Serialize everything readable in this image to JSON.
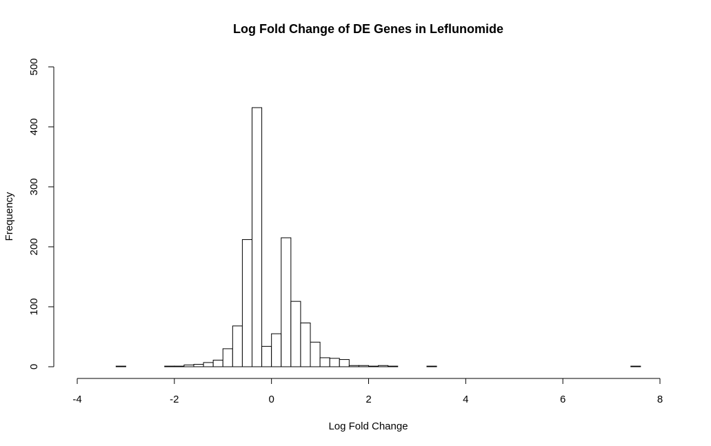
{
  "chart_data": {
    "type": "bar",
    "title": "Log Fold Change of DE Genes in Leflunomide",
    "xlabel": "Log Fold Change",
    "ylabel": "Frequency",
    "xlim": [
      -4,
      8
    ],
    "ylim": [
      0,
      500
    ],
    "xticks": [
      "-4",
      "-2",
      "0",
      "2",
      "4",
      "6",
      "8"
    ],
    "yticks": [
      "0",
      "100",
      "200",
      "300",
      "400",
      "500"
    ],
    "bin_width": 0.2,
    "bins": [
      {
        "start": -3.2,
        "end": -3.0,
        "count": 1
      },
      {
        "start": -3.0,
        "end": -2.8,
        "count": 0
      },
      {
        "start": -2.8,
        "end": -2.6,
        "count": 0
      },
      {
        "start": -2.6,
        "end": -2.4,
        "count": 0
      },
      {
        "start": -2.4,
        "end": -2.2,
        "count": 0
      },
      {
        "start": -2.2,
        "end": -2.0,
        "count": 1
      },
      {
        "start": -2.0,
        "end": -1.8,
        "count": 1
      },
      {
        "start": -1.8,
        "end": -1.6,
        "count": 3
      },
      {
        "start": -1.6,
        "end": -1.4,
        "count": 4
      },
      {
        "start": -1.4,
        "end": -1.2,
        "count": 7
      },
      {
        "start": -1.2,
        "end": -1.0,
        "count": 11
      },
      {
        "start": -1.0,
        "end": -0.8,
        "count": 30
      },
      {
        "start": -0.8,
        "end": -0.6,
        "count": 68
      },
      {
        "start": -0.6,
        "end": -0.4,
        "count": 212
      },
      {
        "start": -0.4,
        "end": -0.2,
        "count": 432
      },
      {
        "start": -0.2,
        "end": 0.0,
        "count": 34
      },
      {
        "start": 0.0,
        "end": 0.2,
        "count": 55
      },
      {
        "start": 0.2,
        "end": 0.4,
        "count": 215
      },
      {
        "start": 0.4,
        "end": 0.6,
        "count": 109
      },
      {
        "start": 0.6,
        "end": 0.8,
        "count": 73
      },
      {
        "start": 0.8,
        "end": 1.0,
        "count": 41
      },
      {
        "start": 1.0,
        "end": 1.2,
        "count": 15
      },
      {
        "start": 1.2,
        "end": 1.4,
        "count": 14
      },
      {
        "start": 1.4,
        "end": 1.6,
        "count": 12
      },
      {
        "start": 1.6,
        "end": 1.8,
        "count": 2
      },
      {
        "start": 1.8,
        "end": 2.0,
        "count": 2
      },
      {
        "start": 2.0,
        "end": 2.2,
        "count": 1
      },
      {
        "start": 2.2,
        "end": 2.4,
        "count": 2
      },
      {
        "start": 2.4,
        "end": 2.6,
        "count": 1
      },
      {
        "start": 2.6,
        "end": 2.8,
        "count": 0
      },
      {
        "start": 2.8,
        "end": 3.0,
        "count": 0
      },
      {
        "start": 3.0,
        "end": 3.2,
        "count": 0
      },
      {
        "start": 3.2,
        "end": 3.4,
        "count": 1
      },
      {
        "start": 3.4,
        "end": 3.6,
        "count": 0
      },
      {
        "start": 3.6,
        "end": 3.8,
        "count": 0
      },
      {
        "start": 3.8,
        "end": 4.0,
        "count": 0
      },
      {
        "start": 4.0,
        "end": 4.2,
        "count": 0
      },
      {
        "start": 4.2,
        "end": 4.4,
        "count": 0
      },
      {
        "start": 4.4,
        "end": 4.6,
        "count": 0
      },
      {
        "start": 4.6,
        "end": 4.8,
        "count": 0
      },
      {
        "start": 4.8,
        "end": 5.0,
        "count": 0
      },
      {
        "start": 5.0,
        "end": 5.2,
        "count": 0
      },
      {
        "start": 5.2,
        "end": 5.4,
        "count": 0
      },
      {
        "start": 5.4,
        "end": 5.6,
        "count": 0
      },
      {
        "start": 5.6,
        "end": 5.8,
        "count": 0
      },
      {
        "start": 5.8,
        "end": 6.0,
        "count": 0
      },
      {
        "start": 6.0,
        "end": 6.2,
        "count": 0
      },
      {
        "start": 6.2,
        "end": 6.4,
        "count": 0
      },
      {
        "start": 6.4,
        "end": 6.6,
        "count": 0
      },
      {
        "start": 6.6,
        "end": 6.8,
        "count": 0
      },
      {
        "start": 6.8,
        "end": 7.0,
        "count": 0
      },
      {
        "start": 7.0,
        "end": 7.2,
        "count": 0
      },
      {
        "start": 7.2,
        "end": 7.4,
        "count": 0
      },
      {
        "start": 7.4,
        "end": 7.6,
        "count": 1
      }
    ],
    "grid": false,
    "legend": "none",
    "bar_fill": "#ffffff",
    "bar_stroke": "#000000"
  }
}
